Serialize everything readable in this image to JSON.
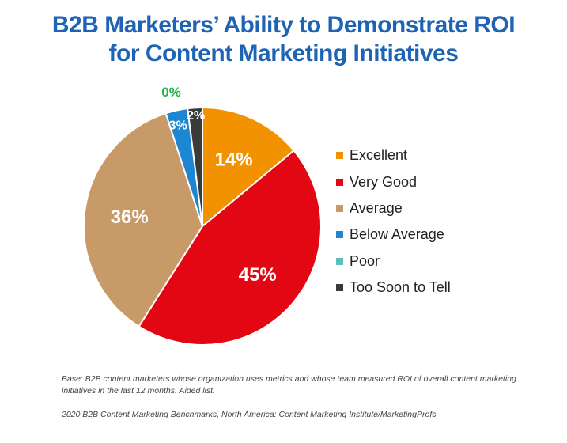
{
  "title_line1": "B2B Marketers’ Ability to Demonstrate ROI",
  "title_line2": "for Content Marketing Initiatives",
  "chart_data": {
    "type": "pie",
    "slices": [
      {
        "name": "Excellent",
        "value": 14,
        "label": "14%",
        "color": "#f39200"
      },
      {
        "name": "Very Good",
        "value": 45,
        "label": "45%",
        "color": "#e30613"
      },
      {
        "name": "Average",
        "value": 36,
        "label": "36%",
        "color": "#c89a68"
      },
      {
        "name": "Below Average",
        "value": 3,
        "label": "3%",
        "color": "#1d86d0"
      },
      {
        "name": "Poor",
        "value": 0,
        "label": "0%",
        "color": "#5bc0b8"
      },
      {
        "name": "Too Soon to Tell",
        "value": 2,
        "label": "2%",
        "color": "#3a3a3a"
      }
    ],
    "legend_position": "right",
    "label_colors": {
      "inside": "#ffffff",
      "zero": "#22b24c"
    }
  },
  "footnote_base": "Base: B2B content marketers whose organization uses metrics and whose team measured ROI of overall content marketing initiatives in the last 12 months. Aided list.",
  "footnote_source": "2020 B2B Content Marketing Benchmarks, North America: Content Marketing Institute/MarketingProfs"
}
